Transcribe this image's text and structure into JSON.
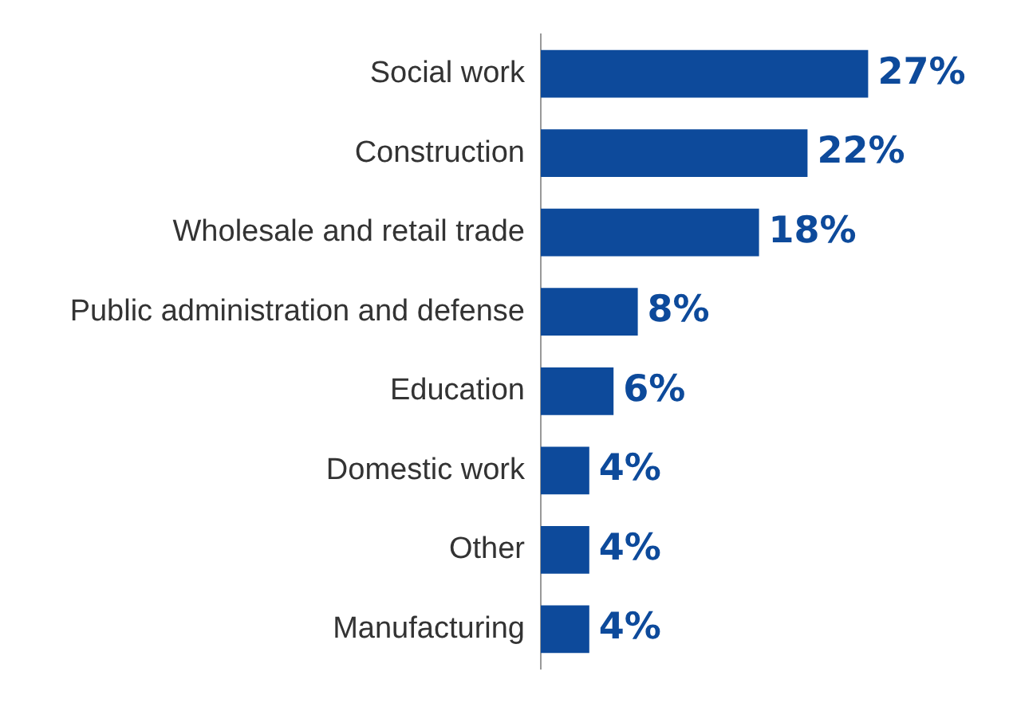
{
  "chart_data": {
    "type": "bar",
    "orientation": "horizontal",
    "categories": [
      "Social work",
      "Construction",
      "Wholesale and retail trade",
      "Public administration and defense",
      "Education",
      "Domestic work",
      "Other",
      "Manufacturing"
    ],
    "values": [
      27,
      22,
      18,
      8,
      6,
      4,
      4,
      4
    ],
    "color": "#0d4a9b",
    "value_labels": [
      "27%",
      "22%",
      "18%",
      "8%",
      "6%",
      "4%",
      "4%",
      "4%"
    ],
    "tick_labels": "y",
    "legend": false,
    "data_labels": true
  }
}
